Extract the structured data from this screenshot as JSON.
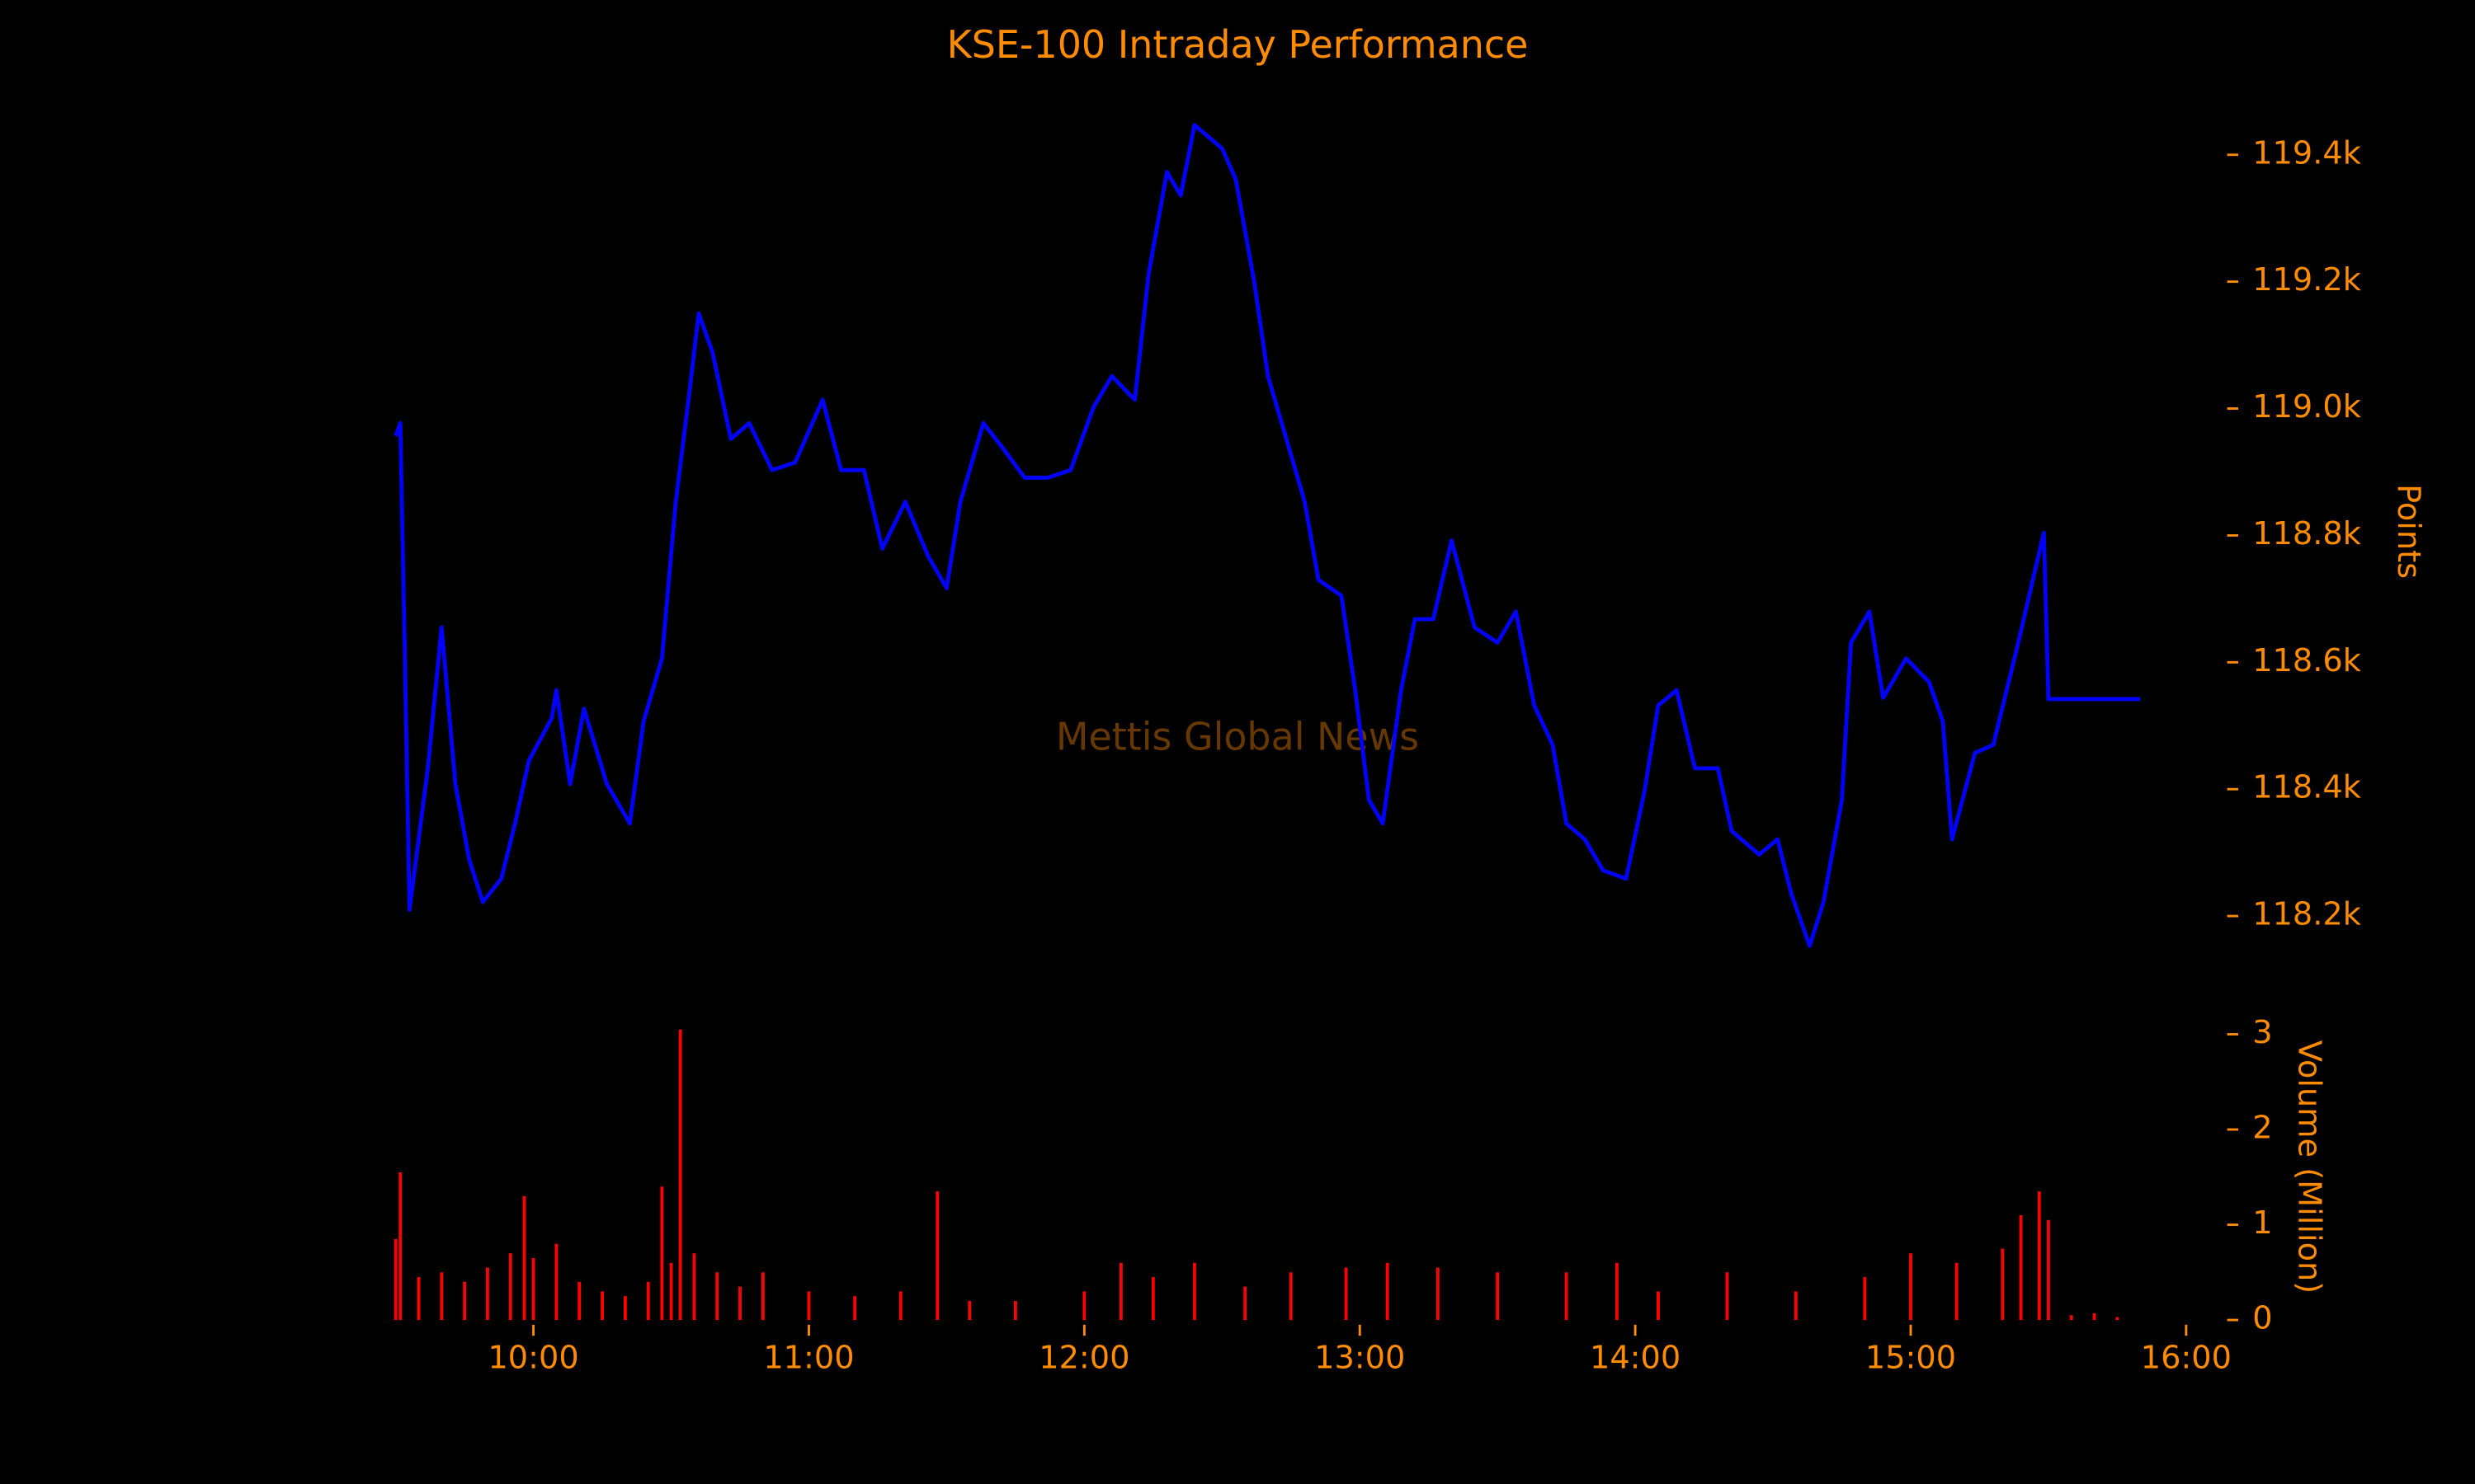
{
  "chart_data": [
    {
      "type": "line",
      "title": "KSE-100 Intraday Performance",
      "ylabel": "Points",
      "annotation": "Mettis Global News",
      "color": "#0000ff",
      "x": [
        "09:30",
        "09:31",
        "09:32",
        "09:33",
        "09:37",
        "09:40",
        "09:43",
        "09:46",
        "09:49",
        "09:53",
        "09:56",
        "09:59",
        "10:04",
        "10:05",
        "10:08",
        "10:11",
        "10:16",
        "10:21",
        "10:24",
        "10:28",
        "10:31",
        "10:34",
        "10:36",
        "10:39",
        "10:43",
        "10:47",
        "10:52",
        "10:57",
        "11:03",
        "11:07",
        "11:12",
        "11:16",
        "11:21",
        "11:26",
        "11:30",
        "11:33",
        "11:38",
        "11:42",
        "11:47",
        "11:52",
        "11:57",
        "12:02",
        "12:06",
        "12:11",
        "12:14",
        "12:18",
        "12:21",
        "12:24",
        "12:30",
        "12:33",
        "12:37",
        "12:40",
        "12:43",
        "12:48",
        "12:51",
        "12:56",
        "12:59",
        "13:02",
        "13:05",
        "13:09",
        "13:12",
        "13:16",
        "13:20",
        "13:25",
        "13:30",
        "13:34",
        "13:38",
        "13:42",
        "13:45",
        "13:49",
        "13:53",
        "13:58",
        "14:02",
        "14:05",
        "14:09",
        "14:13",
        "14:18",
        "14:21",
        "14:27",
        "14:31",
        "14:34",
        "14:38",
        "14:41",
        "14:45",
        "14:47",
        "14:51",
        "14:54",
        "14:59",
        "15:04",
        "15:07",
        "15:09",
        "15:14",
        "15:18",
        "15:23",
        "15:27",
        "15:29",
        "15:30",
        "15:50"
      ],
      "values": [
        118957,
        118977,
        118606,
        118210,
        118433,
        118655,
        118408,
        118289,
        118222,
        118259,
        118346,
        118445,
        118512,
        118556,
        118408,
        118527,
        118408,
        118346,
        118507,
        118606,
        118853,
        119027,
        119150,
        119089,
        118952,
        118977,
        118903,
        118915,
        119014,
        118903,
        118903,
        118779,
        118853,
        118767,
        118717,
        118853,
        118977,
        118940,
        118891,
        118891,
        118903,
        119002,
        119051,
        119014,
        119212,
        119373,
        119336,
        119447,
        119410,
        119361,
        119200,
        119051,
        118977,
        118853,
        118730,
        118705,
        118556,
        118383,
        118346,
        118556,
        118668,
        118668,
        118792,
        118655,
        118631,
        118680,
        118532,
        118470,
        118346,
        118321,
        118272,
        118259,
        118396,
        118532,
        118556,
        118433,
        118433,
        118334,
        118297,
        118321,
        118235,
        118153,
        118222,
        118383,
        118631,
        118680,
        118544,
        118606,
        118569,
        118507,
        118321,
        118457,
        118470,
        118618,
        118742,
        118804,
        118542,
        118542
      ],
      "xlim": [
        "09:30",
        "16:00"
      ],
      "ylim": [
        118140,
        119470
      ],
      "yticks": [
        {
          "value": 118200,
          "label": "118.2k"
        },
        {
          "value": 118400,
          "label": "118.4k"
        },
        {
          "value": 118600,
          "label": "118.6k"
        },
        {
          "value": 118800,
          "label": "118.8k"
        },
        {
          "value": 119000,
          "label": "119.0k"
        },
        {
          "value": 119200,
          "label": "119.2k"
        },
        {
          "value": 119400,
          "label": "119.4k"
        }
      ]
    },
    {
      "type": "bar",
      "ylabel": "Volume (Million)",
      "color": "#ff0000",
      "x": [
        "09:30",
        "09:31",
        "09:35",
        "09:40",
        "09:45",
        "09:50",
        "09:55",
        "09:58",
        "10:00",
        "10:05",
        "10:10",
        "10:15",
        "10:20",
        "10:25",
        "10:28",
        "10:30",
        "10:32",
        "10:35",
        "10:40",
        "10:45",
        "10:50",
        "11:00",
        "11:10",
        "11:20",
        "11:28",
        "11:35",
        "11:45",
        "12:00",
        "12:08",
        "12:15",
        "12:24",
        "12:35",
        "12:45",
        "12:57",
        "13:06",
        "13:17",
        "13:30",
        "13:45",
        "13:56",
        "14:05",
        "14:20",
        "14:35",
        "14:50",
        "15:00",
        "15:10",
        "15:20",
        "15:24",
        "15:28",
        "15:30",
        "15:35",
        "15:40",
        "15:45"
      ],
      "values": [
        0.85,
        1.55,
        0.45,
        0.5,
        0.4,
        0.55,
        0.7,
        1.3,
        0.65,
        0.8,
        0.4,
        0.3,
        0.25,
        0.4,
        1.4,
        0.6,
        3.05,
        0.7,
        0.5,
        0.35,
        0.5,
        0.3,
        0.25,
        0.3,
        1.35,
        0.2,
        0.2,
        0.3,
        0.6,
        0.45,
        0.6,
        0.35,
        0.5,
        0.55,
        0.6,
        0.55,
        0.5,
        0.5,
        0.6,
        0.3,
        0.5,
        0.3,
        0.45,
        0.7,
        0.6,
        0.75,
        1.1,
        1.35,
        1.05,
        0.05,
        0.07,
        0.03
      ],
      "xlim": [
        "09:30",
        "16:00"
      ],
      "xticks": [
        "10:00",
        "11:00",
        "12:00",
        "13:00",
        "14:00",
        "15:00",
        "16:00"
      ],
      "ylim": [
        0,
        3.08
      ],
      "yticks": [
        0,
        1,
        2,
        3
      ]
    }
  ]
}
